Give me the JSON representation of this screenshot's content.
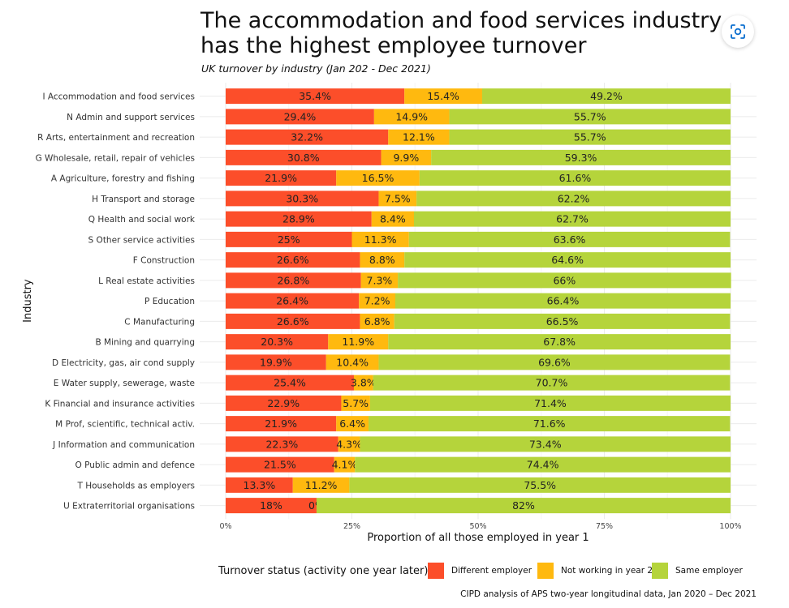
{
  "header": {
    "title": "The accommodation and food services industry has the highest employee turnover",
    "subtitle": "UK turnover by industry (Jan 202 - Dec 2021)"
  },
  "icons": {
    "lens": "visual-search-icon"
  },
  "caption": "CIPD analysis of APS two-year longitudinal data, Jan 2020 – Dec 2021",
  "chart_data": {
    "type": "bar",
    "orientation": "horizontal",
    "stacked": true,
    "xlabel": "Proportion of all those employed in year 1",
    "ylabel": "Industry",
    "xlim": [
      0,
      100
    ],
    "x_ticks": [
      "0%",
      "25%",
      "50%",
      "75%",
      "100%"
    ],
    "grid": true,
    "legend": {
      "title": "Turnover status (activity one year later)",
      "position": "bottom"
    },
    "categories": [
      "I  Accommodation and food services",
      "N  Admin and support services",
      "R  Arts, entertainment and recreation",
      "G  Wholesale, retail, repair of vehicles",
      "A  Agriculture, forestry and fishing",
      "H  Transport and storage",
      "Q  Health and social work",
      "S  Other service activities",
      "F  Construction",
      "L  Real estate activities",
      "P  Education",
      "C  Manufacturing",
      "B  Mining and quarrying",
      "D  Electricity, gas, air cond supply",
      "E  Water supply, sewerage, waste",
      "K  Financial and insurance activities",
      "M  Prof, scientific, technical activ.",
      "J  Information and communication",
      "O  Public admin and defence",
      "T  Households as employers",
      "U  Extraterritorial organisations"
    ],
    "series": [
      {
        "name": "Different employer",
        "color": "#fc4e2a",
        "values": [
          35.4,
          29.4,
          32.2,
          30.8,
          21.9,
          30.3,
          28.9,
          25,
          26.6,
          26.8,
          26.4,
          26.6,
          20.3,
          19.9,
          25.4,
          22.9,
          21.9,
          22.3,
          21.5,
          13.3,
          18
        ],
        "labels": [
          "35.4%",
          "29.4%",
          "32.2%",
          "30.8%",
          "21.9%",
          "30.3%",
          "28.9%",
          "25%",
          "26.6%",
          "26.8%",
          "26.4%",
          "26.6%",
          "20.3%",
          "19.9%",
          "25.4%",
          "22.9%",
          "21.9%",
          "22.3%",
          "21.5%",
          "13.3%",
          "18%"
        ]
      },
      {
        "name": "Not working in year 2",
        "color": "#ffb90f",
        "values": [
          15.4,
          14.9,
          12.1,
          9.9,
          16.5,
          7.5,
          8.4,
          11.3,
          8.8,
          7.3,
          7.2,
          6.8,
          11.9,
          10.4,
          3.8,
          5.7,
          6.4,
          4.3,
          4.1,
          11.2,
          0
        ],
        "labels": [
          "15.4%",
          "14.9%",
          "12.1%",
          "9.9%",
          "16.5%",
          "7.5%",
          "8.4%",
          "11.3%",
          "8.8%",
          "7.3%",
          "7.2%",
          "6.8%",
          "11.9%",
          "10.4%",
          "3.8%",
          "5.7%",
          "6.4%",
          "4.3%",
          "4.1%",
          "11.2%",
          "0%"
        ]
      },
      {
        "name": "Same employer",
        "color": "#b5d43b",
        "values": [
          49.2,
          55.7,
          55.7,
          59.3,
          61.6,
          62.2,
          62.7,
          63.6,
          64.6,
          66,
          66.4,
          66.5,
          67.8,
          69.6,
          70.7,
          71.4,
          71.6,
          73.4,
          74.4,
          75.5,
          82
        ],
        "labels": [
          "49.2%",
          "55.7%",
          "55.7%",
          "59.3%",
          "61.6%",
          "62.2%",
          "62.7%",
          "63.6%",
          "64.6%",
          "66%",
          "66.4%",
          "66.5%",
          "67.8%",
          "69.6%",
          "70.7%",
          "71.4%",
          "71.6%",
          "73.4%",
          "74.4%",
          "75.5%",
          "82%"
        ]
      }
    ]
  }
}
